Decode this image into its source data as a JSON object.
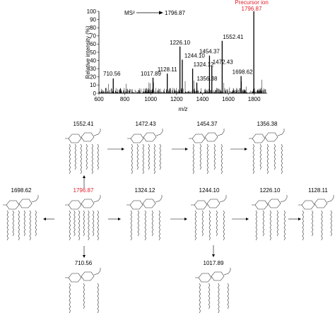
{
  "chart_data": {
    "type": "bar",
    "title": "",
    "xlabel": "m/z",
    "ylabel": "Relative intensity (%)",
    "xlim": [
      600,
      1900
    ],
    "ylim": [
      0,
      100
    ],
    "x_ticks": [
      600,
      800,
      1000,
      1200,
      1400,
      1600,
      1800
    ],
    "y_ticks": [
      0,
      10,
      20,
      30,
      40,
      50,
      60,
      70,
      80,
      90,
      100
    ],
    "ms_label": "MS²",
    "ms_arrow_target": "1796.87",
    "precursor_label_line1": "Precursor ion",
    "precursor_label_line2": "1796.87",
    "peaks": [
      {
        "mz": 710.56,
        "intensity": 18,
        "label": "710.56"
      },
      {
        "mz": 1017.89,
        "intensity": 19,
        "label": "1017.89"
      },
      {
        "mz": 1128.11,
        "intensity": 24,
        "label": "1128.11"
      },
      {
        "mz": 1226.1,
        "intensity": 57,
        "label": "1226.10"
      },
      {
        "mz": 1244.1,
        "intensity": 41,
        "label": "1244.10"
      },
      {
        "mz": 1324.12,
        "intensity": 30,
        "label": "1324.12"
      },
      {
        "mz": 1356.38,
        "intensity": 13,
        "label": "1356.38"
      },
      {
        "mz": 1454.37,
        "intensity": 46,
        "label": "1454.37"
      },
      {
        "mz": 1472.43,
        "intensity": 33,
        "label": "1472.43"
      },
      {
        "mz": 1552.41,
        "intensity": 64,
        "label": "1552.41"
      },
      {
        "mz": 1698.62,
        "intensity": 21,
        "label": "1698.62"
      },
      {
        "mz": 1796.87,
        "intensity": 100,
        "label": "1796.87"
      }
    ]
  },
  "scheme": {
    "nodes": [
      {
        "id": "n1552",
        "label": "1552.41"
      },
      {
        "id": "n1472",
        "label": "1472.43"
      },
      {
        "id": "n1454",
        "label": "1454.37"
      },
      {
        "id": "n1356",
        "label": "1356.38"
      },
      {
        "id": "n1698",
        "label": "1698.62"
      },
      {
        "id": "n1796",
        "label": "1796.87",
        "color": "#e0202a"
      },
      {
        "id": "n1324",
        "label": "1324.12"
      },
      {
        "id": "n1244",
        "label": "1244.10"
      },
      {
        "id": "n1226",
        "label": "1226.10"
      },
      {
        "id": "n1128",
        "label": "1128.11"
      },
      {
        "id": "n710",
        "label": "710.56"
      },
      {
        "id": "n1017",
        "label": "1017.89"
      }
    ]
  }
}
